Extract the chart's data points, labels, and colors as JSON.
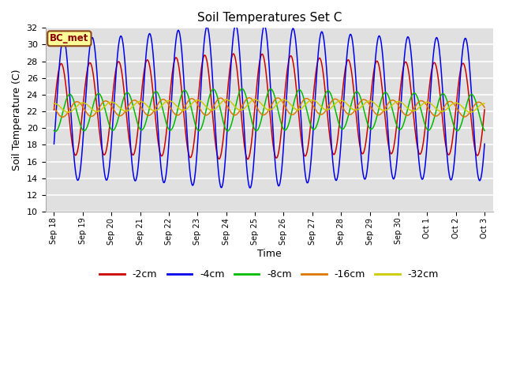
{
  "title": "Soil Temperatures Set C",
  "xlabel": "Time",
  "ylabel": "Soil Temperature (C)",
  "ylim": [
    10,
    32
  ],
  "yticks": [
    10,
    12,
    14,
    16,
    18,
    20,
    22,
    24,
    26,
    28,
    30,
    32
  ],
  "plot_bg_color": "#e0e0e0",
  "grid_color": "#ffffff",
  "label_box_text": "BC_met",
  "label_box_facecolor": "#ffff99",
  "label_box_edgecolor": "#8B4513",
  "label_box_textcolor": "#8B0000",
  "series": [
    {
      "label": "-2cm",
      "color": "#cc0000",
      "amplitude": 5.5,
      "phase": 0.0,
      "mean": 22.2,
      "phase_lag": 0.0
    },
    {
      "label": "-4cm",
      "color": "#0000ee",
      "amplitude": 8.5,
      "phase": 0.08,
      "mean": 22.2,
      "phase_lag": 0.08
    },
    {
      "label": "-8cm",
      "color": "#00bb00",
      "amplitude": 2.2,
      "phase": 0.3,
      "mean": 21.8,
      "phase_lag": 0.3
    },
    {
      "label": "-16cm",
      "color": "#dd7700",
      "amplitude": 0.9,
      "phase": 0.55,
      "mean": 22.2,
      "phase_lag": 0.55
    },
    {
      "label": "-32cm",
      "color": "#cccc00",
      "amplitude": 0.55,
      "phase": 0.75,
      "mean": 22.4,
      "phase_lag": 0.75
    }
  ],
  "n_points": 3000,
  "n_days": 15,
  "tick_positions": [
    0,
    1,
    2,
    3,
    4,
    5,
    6,
    7,
    8,
    9,
    10,
    11,
    12,
    13,
    14,
    15
  ],
  "tick_labels": [
    "Sep 18",
    "Sep 19",
    "Sep 20",
    "Sep 21",
    "Sep 22",
    "Sep 23",
    "Sep 24",
    "Sep 25",
    "Sep 26",
    "Sep 27",
    "Sep 28",
    "Sep 29",
    "Sep 30",
    "Oct 1",
    "Oct 2",
    "Oct 3"
  ],
  "figsize": [
    6.4,
    4.8
  ],
  "dpi": 100
}
